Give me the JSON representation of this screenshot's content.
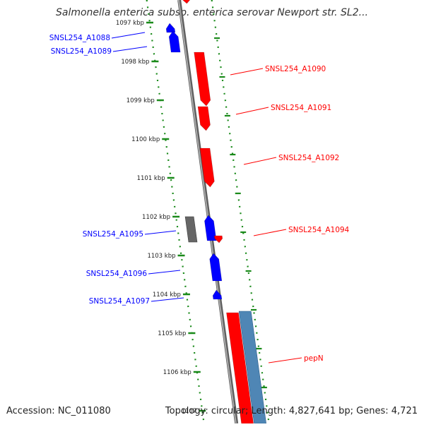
{
  "title": "Salmonella enterica subsp. enterica serovar Newport str. SL2...",
  "accession": "Accession: NC_011080",
  "topology": "Topology: circular; Length: 4,827,641 bp; Genes: 4,721",
  "colors": {
    "forward_strand": "#ff0000",
    "reverse_strand": "#0000ff",
    "backbone": "#808080",
    "ruler": "#1a8a1a",
    "grey_feature": "#666666",
    "steel_feature": "#4f86b5"
  },
  "ticks": [
    {
      "label": "1097 kbp"
    },
    {
      "label": "1098 kbp"
    },
    {
      "label": "1099 kbp"
    },
    {
      "label": "1100 kbp"
    },
    {
      "label": "1101 kbp"
    },
    {
      "label": "1102 kbp"
    },
    {
      "label": "1103 kbp"
    },
    {
      "label": "1104 kbp"
    },
    {
      "label": "1105 kbp"
    },
    {
      "label": "1106 kbp"
    },
    {
      "label": "1107"
    }
  ],
  "reverse_genes": [
    {
      "label": "SNSL254_A1088"
    },
    {
      "label": "SNSL254_A1089"
    },
    {
      "label": "SNSL254_A1095"
    },
    {
      "label": "SNSL254_A1096"
    },
    {
      "label": "SNSL254_A1097"
    }
  ],
  "forward_genes": [
    {
      "label": "SNSL254_A1090"
    },
    {
      "label": "SNSL254_A1091"
    },
    {
      "label": "SNSL254_A1092"
    },
    {
      "label": "SNSL254_A1094"
    },
    {
      "label": "pepN"
    }
  ]
}
